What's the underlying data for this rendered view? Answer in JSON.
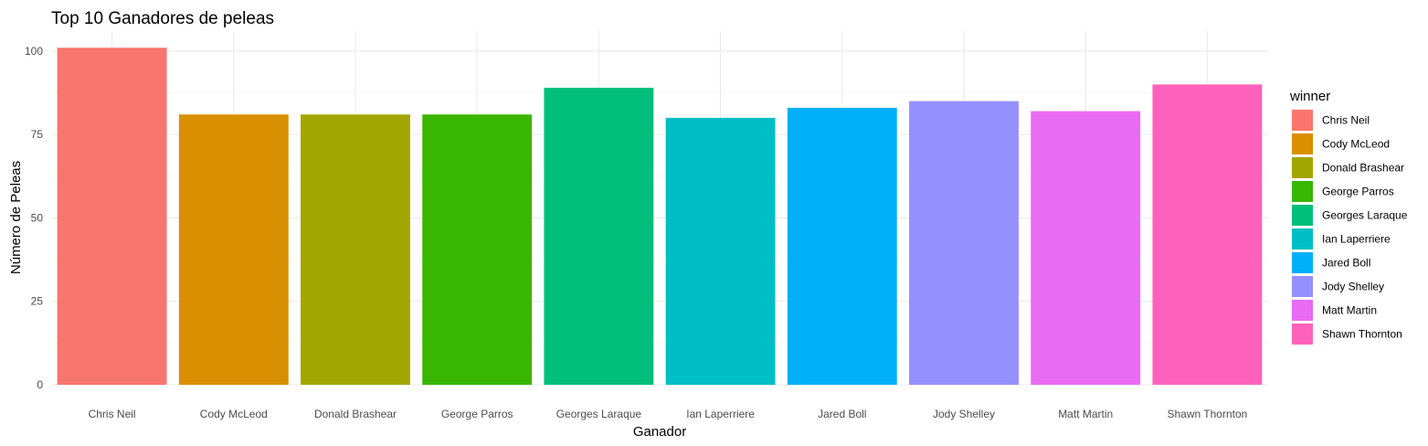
{
  "chart_data": {
    "type": "bar",
    "title": "Top 10 Ganadores de peleas",
    "xlabel": "Ganador",
    "ylabel": "Número de Peleas",
    "categories": [
      "Chris Neil",
      "Cody McLeod",
      "Donald Brashear",
      "George Parros",
      "Georges Laraque",
      "Ian Laperriere",
      "Jared Boll",
      "Jody Shelley",
      "Matt Martin",
      "Shawn Thornton"
    ],
    "values": [
      101,
      81,
      81,
      81,
      89,
      80,
      83,
      85,
      82,
      90
    ],
    "colors": [
      "#F8766D",
      "#D89000",
      "#A3A500",
      "#39B600",
      "#00BF7D",
      "#00BFC4",
      "#00B0F6",
      "#9590FF",
      "#E76BF3",
      "#FF62BC"
    ],
    "ylim": [
      0,
      106
    ],
    "yticks": [
      0,
      25,
      50,
      75,
      100
    ],
    "grid": true,
    "legend": {
      "title": "winner",
      "position": "right",
      "entries": [
        "Chris Neil",
        "Cody McLeod",
        "Donald Brashear",
        "George Parros",
        "Georges Laraque",
        "Ian Laperriere",
        "Jared Boll",
        "Jody Shelley",
        "Matt Martin",
        "Shawn Thornton"
      ]
    }
  }
}
